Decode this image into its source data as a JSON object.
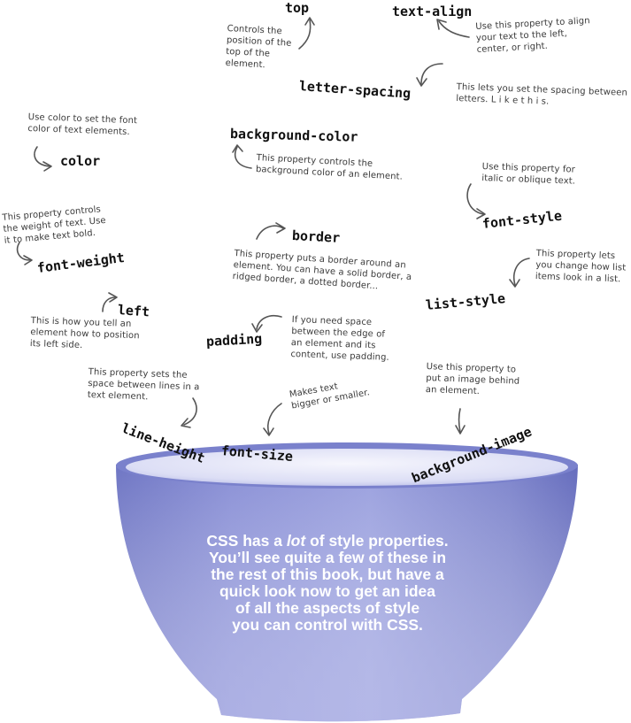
{
  "properties": {
    "top": "top",
    "text_align": "text-align",
    "letter_spacing": "letter-spacing",
    "background_color": "background-color",
    "color": "color",
    "font_style": "font-style",
    "font_weight": "font-weight",
    "border": "border",
    "list_style": "list-style",
    "left": "left",
    "padding": "padding",
    "line_height": "line-height",
    "font_size": "font-size",
    "background_image": "background-image"
  },
  "notes": {
    "top": [
      "Controls the",
      "position of the",
      "top of the",
      "element."
    ],
    "text_align": [
      "Use this property to align",
      "your text to the left,",
      "center, or right."
    ],
    "letter_spacing": [
      "This lets you set the spacing between",
      "letters. L i k e   t h i s."
    ],
    "color": [
      "Use color to set the font",
      "color of text elements."
    ],
    "background_color": [
      "This property controls the",
      "background color of an element."
    ],
    "font_style": [
      "Use this property for",
      "italic or oblique text."
    ],
    "font_weight": [
      "This property controls",
      "the weight of text. Use",
      "it to make text bold."
    ],
    "border": [
      "This property puts a border around an",
      "element. You can have a solid border, a",
      "ridged border, a dotted border..."
    ],
    "list_style": [
      "This property lets",
      "you change how list",
      "items look in a list."
    ],
    "left": [
      "This is how you tell an",
      "element how to position",
      "its left side."
    ],
    "padding": [
      "If you need space",
      "between the edge of",
      "an element and its",
      "content, use padding."
    ],
    "line_height": [
      "This property sets the",
      "space between lines in a",
      "text element."
    ],
    "font_size": [
      "Makes text",
      "bigger or smaller."
    ],
    "background_image": [
      "Use this property to",
      "put an image behind",
      "an element."
    ]
  },
  "bowl_text": {
    "line1": "CSS has a lot of style properties.",
    "line2": "You’ll see quite a few of these in",
    "line3": "the rest of this book, but have a",
    "line4": "quick look now to get an idea",
    "line5": "of all the aspects of style",
    "line6": "you can control with CSS."
  },
  "colors": {
    "bowl_body": "#7f86cf",
    "bowl_inner": "#e8e9f8",
    "text_on_bowl": "#ffffff"
  }
}
